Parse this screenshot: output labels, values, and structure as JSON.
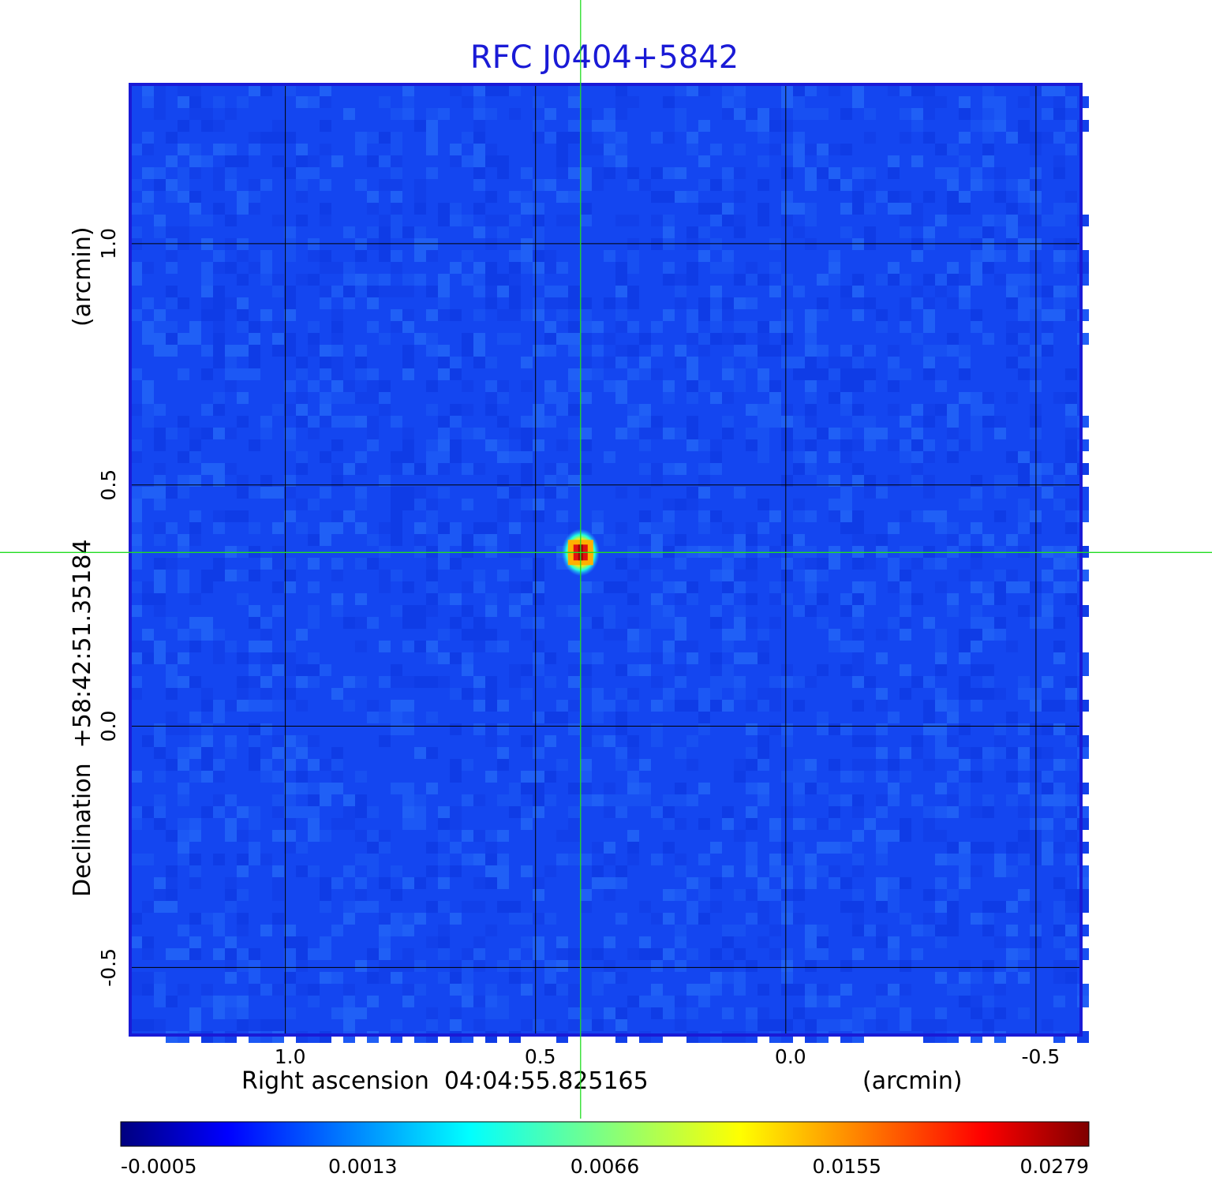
{
  "chart_data": {
    "type": "heatmap",
    "title": "RFC J0404+5842",
    "xlabel": "Right ascension  04:04:55.825165",
    "xunit": "(arcmin)",
    "ylabel": "Declination  +58:42:51.35184",
    "yunit": "(arcmin)",
    "xlim": [
      1.31,
      -0.59
    ],
    "ylim": [
      -0.64,
      1.33
    ],
    "x_ticks": [
      {
        "value": 1.0,
        "label": "1.0"
      },
      {
        "value": 0.5,
        "label": "0.5"
      },
      {
        "value": 0.0,
        "label": "0.0"
      },
      {
        "value": -0.5,
        "label": "-0.5"
      }
    ],
    "y_ticks": [
      {
        "value": 1.0,
        "label": "1.0"
      },
      {
        "value": 0.5,
        "label": "0.5"
      },
      {
        "value": 0.0,
        "label": "0.0"
      },
      {
        "value": -0.5,
        "label": "-0.5"
      }
    ],
    "grid": true,
    "crosshair": {
      "x": 0.41,
      "y": 0.36
    },
    "source_peak": {
      "x": 0.41,
      "y": 0.36,
      "value": 0.0279
    },
    "colorbar": {
      "colormap": "jet",
      "ticks": [
        "-0.0005",
        "0.0013",
        "0.0066",
        "0.0155",
        "0.0279"
      ]
    }
  },
  "colors": {
    "title": "#1a1ad6",
    "frame": "#1a1ad6",
    "grid": "#000000",
    "crosshair": "#22dd22",
    "background_pixel": "#1446f0"
  }
}
